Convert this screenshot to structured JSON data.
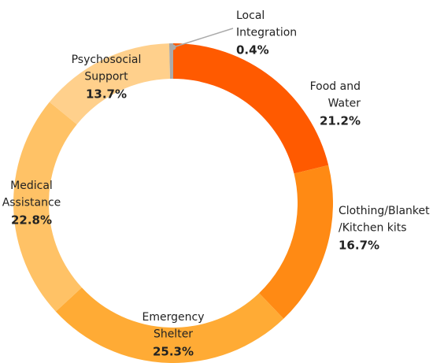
{
  "chart_data": {
    "type": "donut",
    "categories": [
      "Food and\nWater",
      "Clothing/Blanket\n/Kitchen kits",
      "Emergency\nShelter",
      "Medical\nAssistance",
      "Psychosocial\nSupport",
      "Local\nIntegration"
    ],
    "values": [
      21.2,
      16.7,
      25.3,
      22.8,
      13.7,
      0.4
    ],
    "value_labels": [
      "21.2%",
      "16.7%",
      "25.3%",
      "22.8%",
      "13.7%",
      "0.4%"
    ],
    "colors": [
      "#ff5a00",
      "#ff8a14",
      "#ffab35",
      "#ffc266",
      "#ffd08c",
      "#aaaaaa"
    ]
  }
}
